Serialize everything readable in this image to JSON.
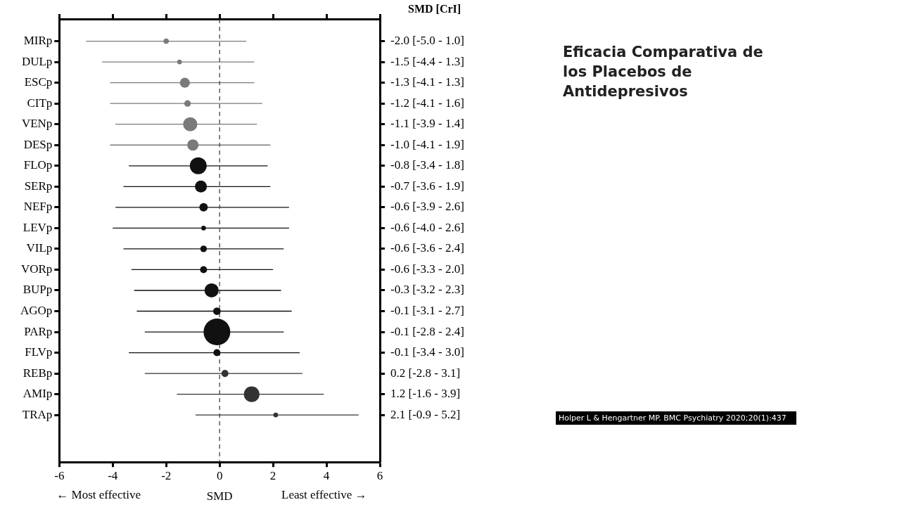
{
  "chart_data": {
    "type": "bubble",
    "orientation": "horizontal",
    "title": "Eficacia Comparativa de los Placebos de Antidepresivos",
    "xlabel": "SMD",
    "categories": [
      "MIRp",
      "DULp",
      "ESCp",
      "CITp",
      "VENp",
      "DESp",
      "FLOp",
      "SERp",
      "NEFp",
      "LEVp",
      "VILp",
      "VORp",
      "BUPp",
      "AGOp",
      "PARp",
      "FLVp",
      "REBp",
      "AMIp",
      "TRAp"
    ],
    "values": [
      -2.0,
      -1.5,
      -1.3,
      -1.2,
      -1.1,
      -1.0,
      -0.8,
      -0.7,
      -0.6,
      -0.6,
      -0.6,
      -0.6,
      -0.3,
      -0.1,
      -0.1,
      -0.1,
      0.2,
      1.2,
      2.1
    ],
    "errors": [
      [
        -5.0,
        1.0
      ],
      [
        -4.4,
        1.3
      ],
      [
        -4.1,
        1.3
      ],
      [
        -4.1,
        1.6
      ],
      [
        -3.9,
        1.4
      ],
      [
        -4.1,
        1.9
      ],
      [
        -3.4,
        1.8
      ],
      [
        -3.6,
        1.9
      ],
      [
        -3.9,
        2.6
      ],
      [
        -4.0,
        2.6
      ],
      [
        -3.6,
        2.4
      ],
      [
        -3.3,
        2.0
      ],
      [
        -3.2,
        2.3
      ],
      [
        -3.1,
        2.7
      ],
      [
        -2.8,
        2.4
      ],
      [
        -3.4,
        3.0
      ],
      [
        -2.8,
        3.1
      ],
      [
        -1.6,
        3.9
      ],
      [
        -0.9,
        5.2
      ]
    ],
    "sizes": [
      0.04,
      0.03,
      0.14,
      0.06,
      0.28,
      0.18,
      0.4,
      0.2,
      0.1,
      0.03,
      0.06,
      0.07,
      0.28,
      0.08,
      1,
      0.07,
      0.07,
      0.34,
      0.03
    ],
    "colors": [
      "#7a7a7a",
      "#7a7a7a",
      "#7a7a7a",
      "#7a7a7a",
      "#7a7a7a",
      "#7a7a7a",
      "#111111",
      "#111111",
      "#111111",
      "#111111",
      "#111111",
      "#111111",
      "#111111",
      "#111111",
      "#111111",
      "#111111",
      "#333333",
      "#333333",
      "#333333"
    ],
    "value_labels": [
      "-2.0 [-5.0 - 1.0]",
      "-1.5 [-4.4 - 1.3]",
      "-1.3 [-4.1 - 1.3]",
      "-1.2 [-4.1 - 1.6]",
      "-1.1 [-3.9 - 1.4]",
      "-1.0 [-4.1 - 1.9]",
      "-0.8 [-3.4 - 1.8]",
      "-0.7 [-3.6 - 1.9]",
      "-0.6 [-3.9 - 2.6]",
      "-0.6 [-4.0 - 2.6]",
      "-0.6 [-3.6 - 2.4]",
      "-0.6 [-3.3 - 2.0]",
      "-0.3 [-3.2 - 2.3]",
      "-0.1 [-3.1 - 2.7]",
      "-0.1 [-2.8 - 2.4]",
      "-0.1 [-3.4 - 3.0]",
      "0.2 [-2.8 - 3.1]",
      "1.2 [-1.6 - 3.9]",
      "2.1 [-0.9 - 5.2]"
    ],
    "xlim": [
      -6,
      6
    ],
    "xticks": [
      -6,
      -4,
      -2,
      0,
      2,
      4,
      6
    ],
    "ref_lines": [
      {
        "axis": "x",
        "value": 0,
        "color": "#333333",
        "line_style": "dashed"
      }
    ],
    "annotations": [
      "SMD [CrI]",
      "← Most effective",
      "Least effective →",
      "Holper L & Hengartner MP. BMC Psychiatry 2020;20(1):437"
    ]
  }
}
